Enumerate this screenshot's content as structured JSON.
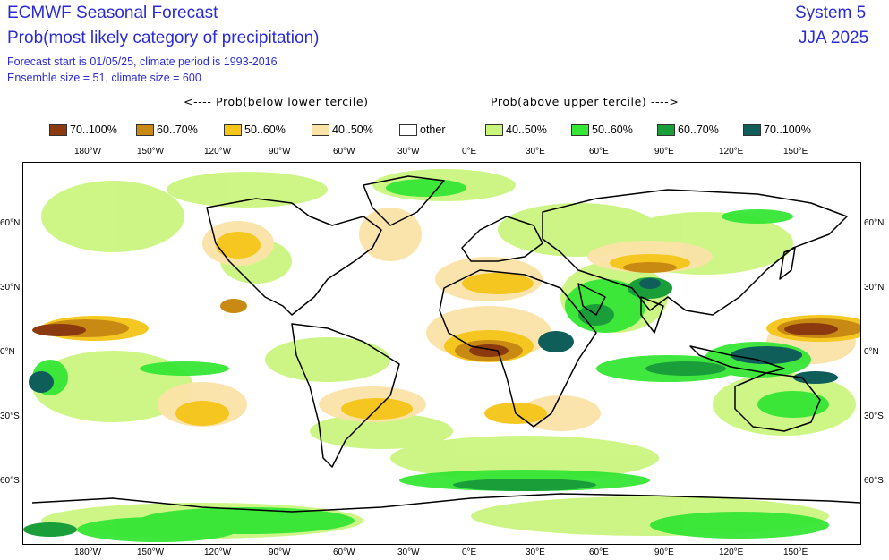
{
  "header": {
    "title": "ECMWF Seasonal Forecast",
    "subtitle": "Prob(most likely category of precipitation)",
    "info_line1": "Forecast start is 01/05/25, climate period is 1993-2016",
    "info_line2": "Ensemble size = 51, climate size = 600",
    "system": "System 5",
    "season": "JJA 2025"
  },
  "legend": {
    "below_label": "<---- Prob(below lower tercile)",
    "above_label": "Prob(above upper tercile) ---->",
    "items": [
      {
        "label": "70..100%",
        "color": "#8b3a0f"
      },
      {
        "label": "60..70%",
        "color": "#c98a13"
      },
      {
        "label": "50..60%",
        "color": "#f5c518"
      },
      {
        "label": "40..50%",
        "color": "#fbe3a8"
      },
      {
        "label": "other",
        "color": "#ffffff"
      },
      {
        "label": "40..50%",
        "color": "#c8f57a"
      },
      {
        "label": "50..60%",
        "color": "#35e635"
      },
      {
        "label": "60..70%",
        "color": "#1a9e3a"
      },
      {
        "label": "70..100%",
        "color": "#0f5e5a"
      }
    ]
  },
  "axes": {
    "x_ticks": [
      "180°W",
      "150°W",
      "120°W",
      "90°W",
      "60°W",
      "30°W",
      "0°E",
      "30°E",
      "60°E",
      "90°E",
      "120°E",
      "150°E"
    ],
    "y_ticks": [
      "60°N",
      "30°N",
      "0°N",
      "30°S",
      "60°S"
    ]
  }
}
